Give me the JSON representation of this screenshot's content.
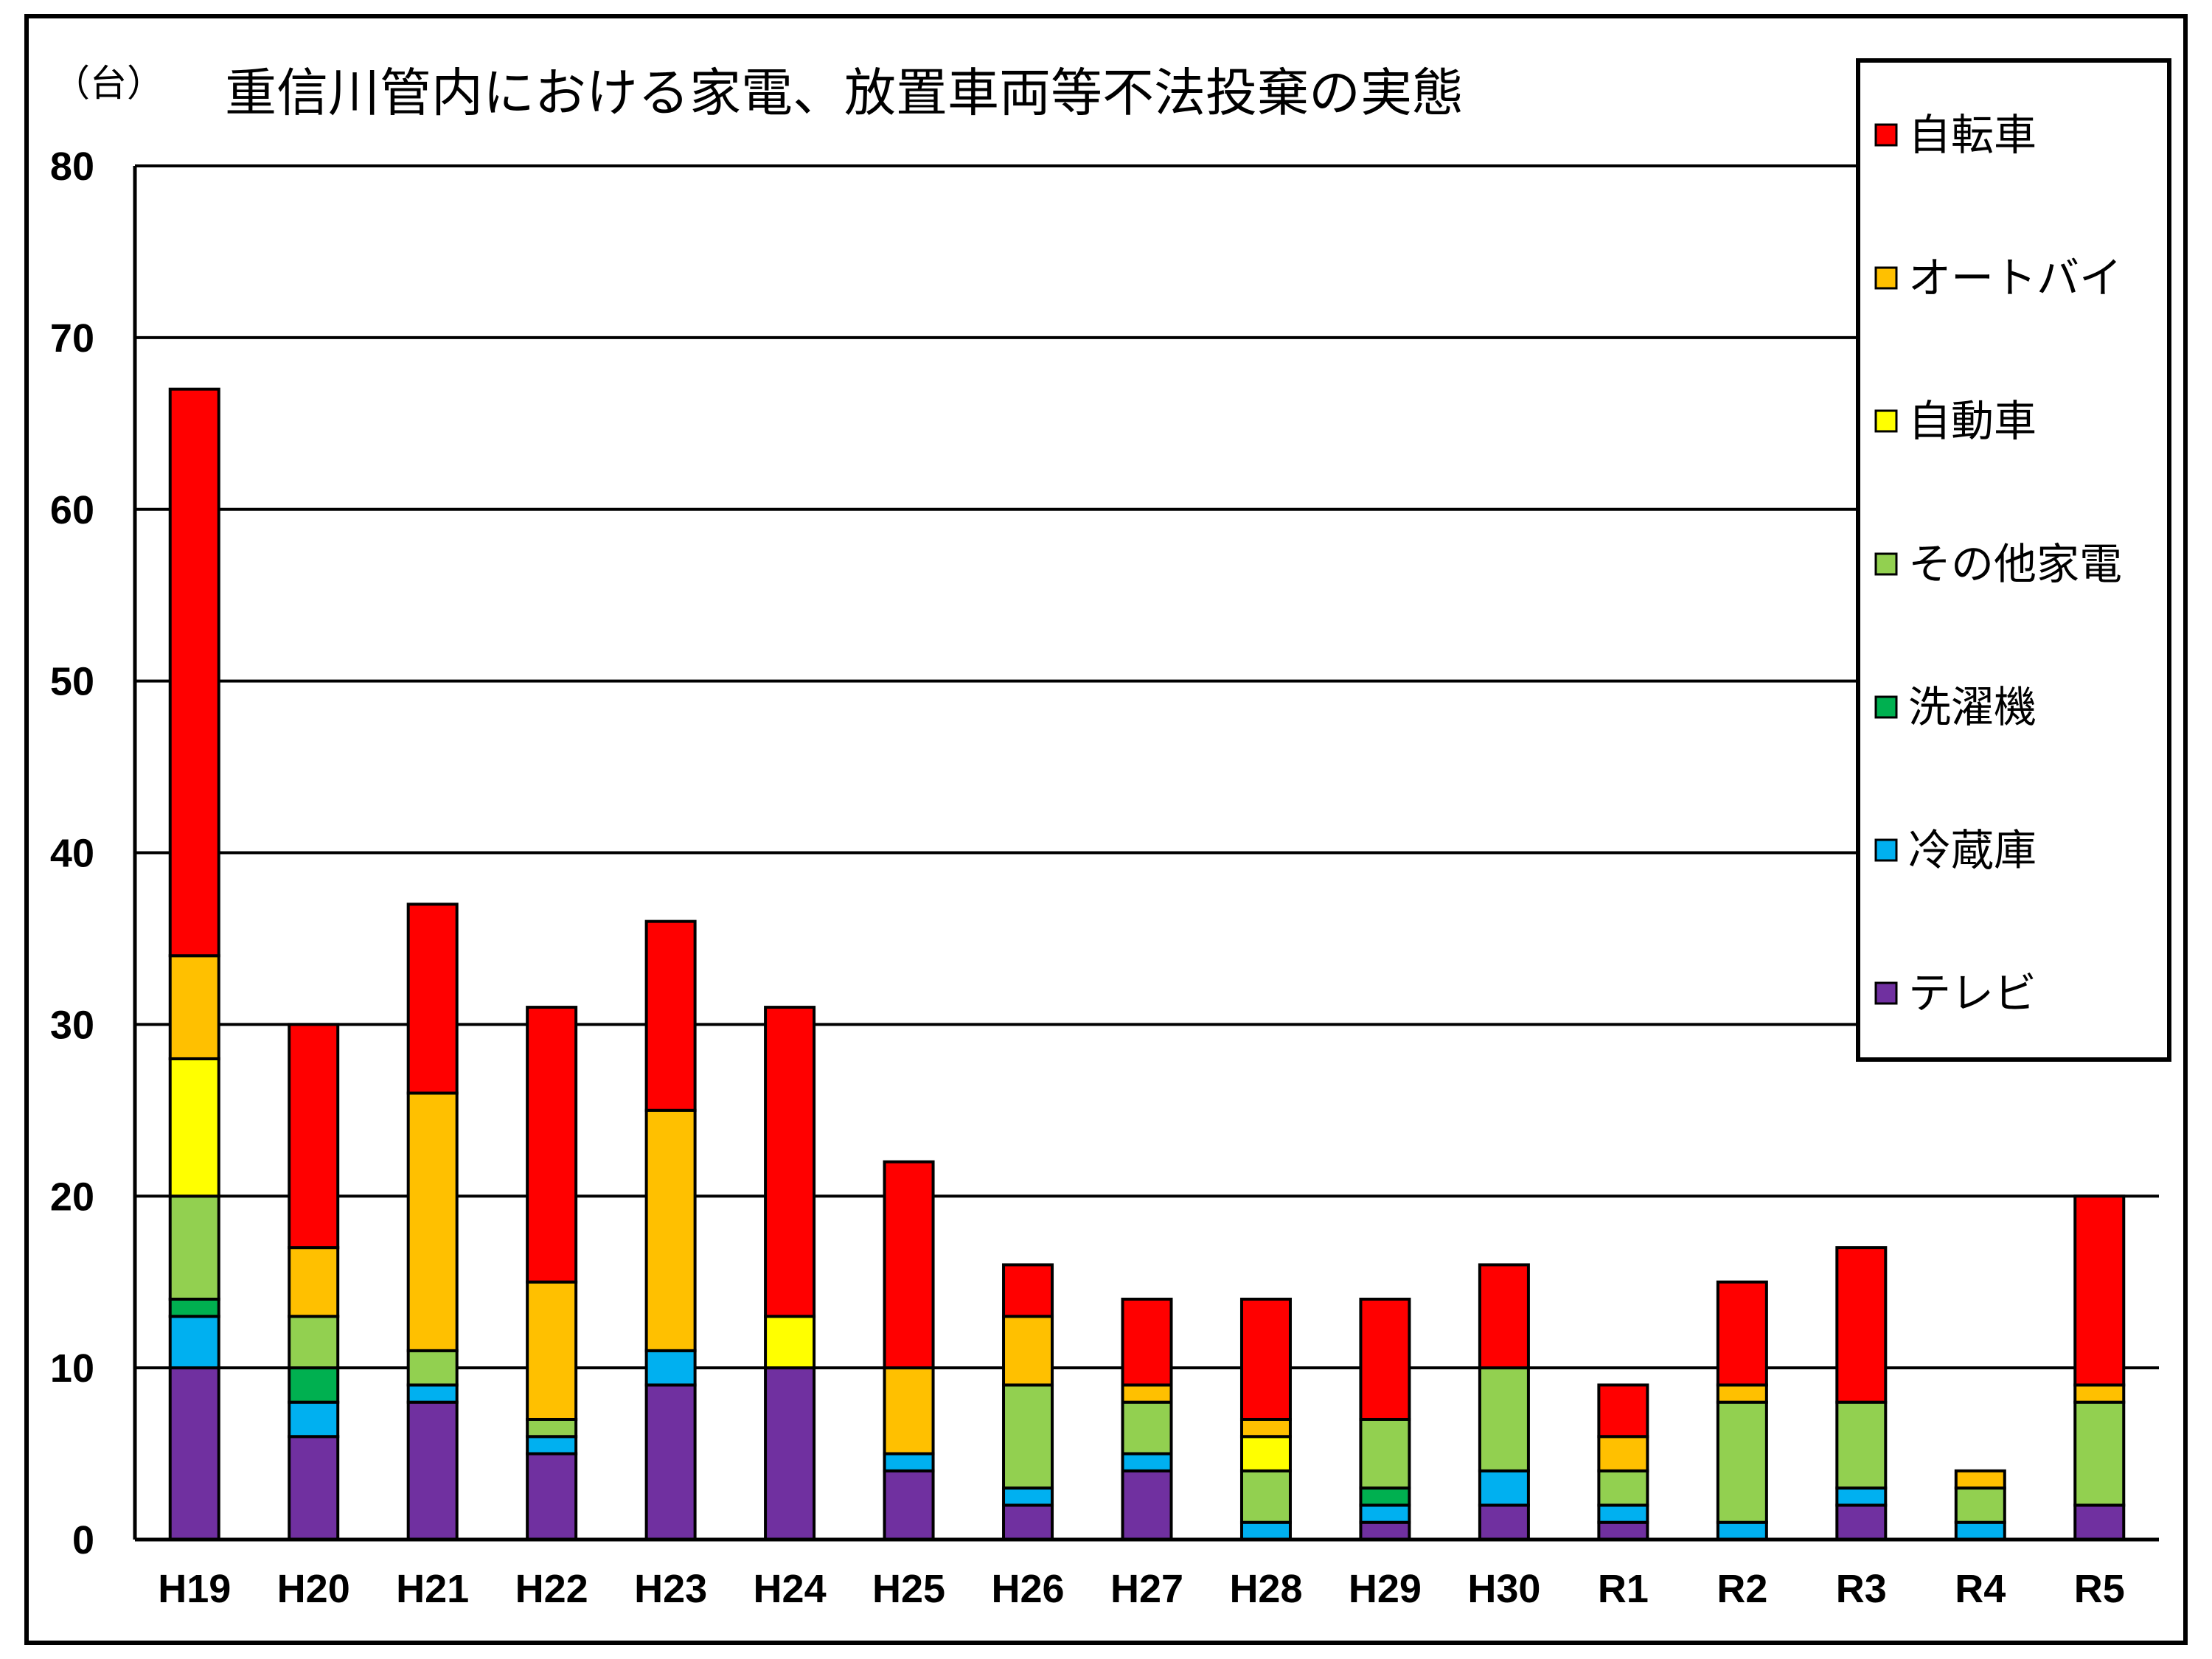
{
  "chart_data": {
    "type": "bar",
    "stacked": true,
    "title": "重信川管内における家電、放置車両等不法投棄の実態",
    "unit_label": "（台）",
    "xlabel": "",
    "ylabel": "",
    "ylim": [
      0,
      80
    ],
    "yticks": [
      0,
      10,
      20,
      30,
      40,
      50,
      60,
      70,
      80
    ],
    "grid": true,
    "legend_position": "top-right",
    "categories": [
      "H19",
      "H20",
      "H21",
      "H22",
      "H23",
      "H24",
      "H25",
      "H26",
      "H27",
      "H28",
      "H29",
      "H30",
      "R1",
      "R2",
      "R3",
      "R4",
      "R5"
    ],
    "series": [
      {
        "name": "テレビ",
        "color": "#7030A0",
        "values": [
          10,
          6,
          8,
          5,
          9,
          10,
          4,
          2,
          4,
          0,
          1,
          2,
          1,
          0,
          2,
          0,
          2
        ]
      },
      {
        "name": "冷蔵庫",
        "color": "#00B0F0",
        "values": [
          3,
          2,
          1,
          1,
          2,
          0,
          1,
          1,
          1,
          1,
          1,
          2,
          1,
          1,
          1,
          1,
          0
        ]
      },
      {
        "name": "洗濯機",
        "color": "#00B050",
        "values": [
          1,
          2,
          0,
          0,
          0,
          0,
          0,
          0,
          0,
          0,
          1,
          0,
          0,
          0,
          0,
          0,
          0
        ]
      },
      {
        "name": "その他家電",
        "color": "#92D050",
        "values": [
          6,
          3,
          2,
          1,
          0,
          0,
          0,
          6,
          3,
          3,
          4,
          6,
          2,
          7,
          5,
          2,
          6
        ]
      },
      {
        "name": "自動車",
        "color": "#FFFF00",
        "values": [
          8,
          0,
          0,
          0,
          0,
          3,
          0,
          0,
          0,
          2,
          0,
          0,
          0,
          0,
          0,
          0,
          0
        ]
      },
      {
        "name": "オートバイ",
        "color": "#FFC000",
        "values": [
          6,
          4,
          15,
          8,
          14,
          0,
          5,
          4,
          1,
          1,
          0,
          0,
          2,
          1,
          0,
          1,
          1
        ]
      },
      {
        "name": "自転車",
        "color": "#FF0000",
        "values": [
          33,
          13,
          11,
          16,
          11,
          18,
          12,
          3,
          5,
          7,
          7,
          6,
          3,
          6,
          9,
          0,
          11
        ]
      }
    ]
  }
}
